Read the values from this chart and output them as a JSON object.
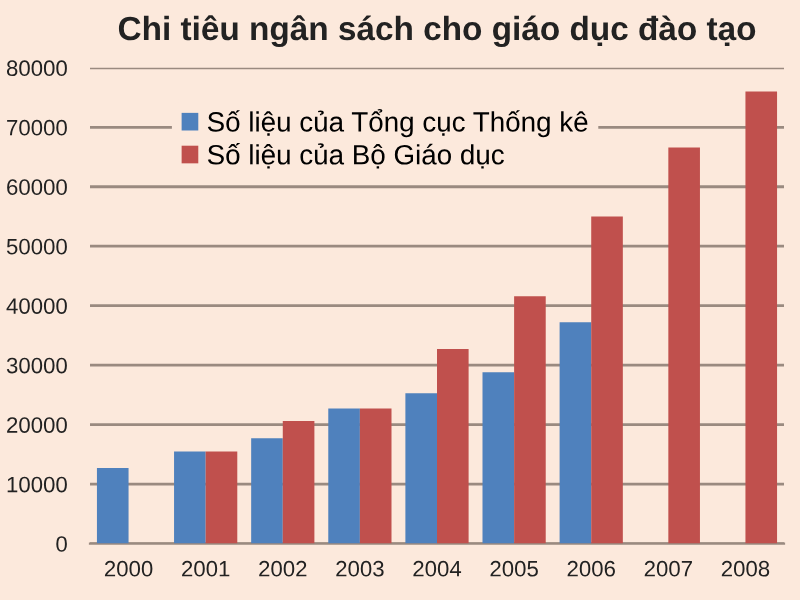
{
  "chart_data": {
    "type": "bar",
    "title": "Chi tiêu ngân sách cho giáo dục đào tạo",
    "categories": [
      "2000",
      "2001",
      "2002",
      "2003",
      "2004",
      "2005",
      "2006",
      "2007",
      "2008"
    ],
    "series": [
      {
        "name": "Số liệu của Tổng cục Thống kê",
        "color": "#4f81bd",
        "values": [
          12700,
          15500,
          17700,
          22700,
          25300,
          28800,
          37200,
          null,
          null
        ]
      },
      {
        "name": "Số liệu của Bộ Giáo dục",
        "color": "#c0504d",
        "values": [
          null,
          15500,
          20600,
          22700,
          32700,
          41600,
          55000,
          66600,
          76000
        ]
      }
    ],
    "ylim": [
      0,
      80000
    ],
    "yticks": [
      0,
      10000,
      20000,
      30000,
      40000,
      50000,
      60000,
      70000,
      80000
    ],
    "grid": "y",
    "legend": "top left"
  }
}
